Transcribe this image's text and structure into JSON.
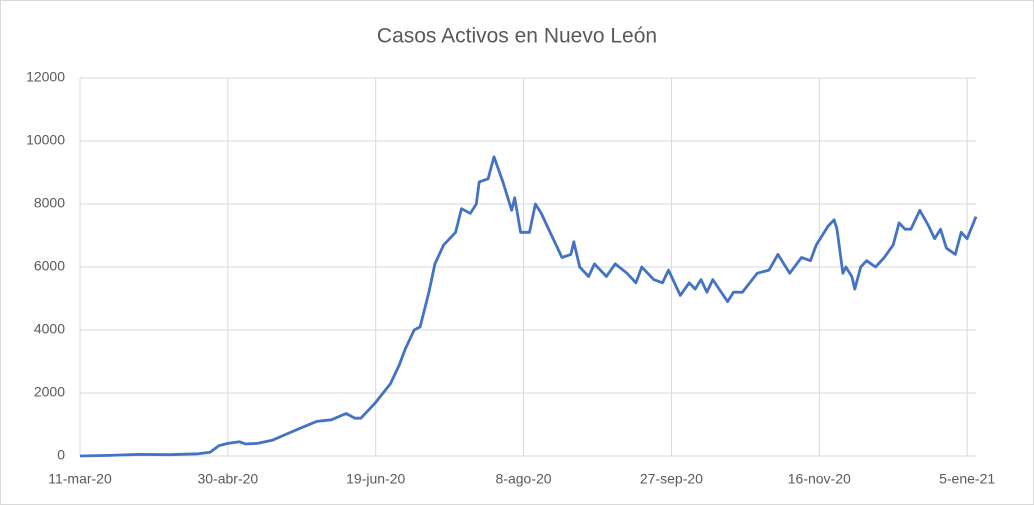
{
  "chart_data": {
    "type": "line",
    "title": "Casos Activos en Nuevo León",
    "x": [
      "2020-03-11",
      "2020-03-21",
      "2020-03-31",
      "2020-04-10",
      "2020-04-20",
      "2020-04-24",
      "2020-04-27",
      "2020-04-30",
      "2020-05-04",
      "2020-05-06",
      "2020-05-10",
      "2020-05-15",
      "2020-05-20",
      "2020-05-25",
      "2020-05-30",
      "2020-06-04",
      "2020-06-09",
      "2020-06-12",
      "2020-06-14",
      "2020-06-19",
      "2020-06-24",
      "2020-06-27",
      "2020-06-29",
      "2020-07-02",
      "2020-07-04",
      "2020-07-07",
      "2020-07-09",
      "2020-07-12",
      "2020-07-16",
      "2020-07-18",
      "2020-07-21",
      "2020-07-23",
      "2020-07-24",
      "2020-07-27",
      "2020-07-29",
      "2020-08-01",
      "2020-08-04",
      "2020-08-05",
      "2020-08-07",
      "2020-08-10",
      "2020-08-12",
      "2020-08-14",
      "2020-08-16",
      "2020-08-21",
      "2020-08-24",
      "2020-08-25",
      "2020-08-27",
      "2020-08-30",
      "2020-09-01",
      "2020-09-05",
      "2020-09-08",
      "2020-09-12",
      "2020-09-15",
      "2020-09-17",
      "2020-09-21",
      "2020-09-24",
      "2020-09-26",
      "2020-09-30",
      "2020-10-03",
      "2020-10-05",
      "2020-10-07",
      "2020-10-09",
      "2020-10-11",
      "2020-10-16",
      "2020-10-18",
      "2020-10-21",
      "2020-10-26",
      "2020-10-30",
      "2020-11-02",
      "2020-11-06",
      "2020-11-10",
      "2020-11-13",
      "2020-11-15",
      "2020-11-19",
      "2020-11-21",
      "2020-11-22",
      "2020-11-24",
      "2020-11-25",
      "2020-11-27",
      "2020-11-28",
      "2020-11-30",
      "2020-12-02",
      "2020-12-05",
      "2020-12-08",
      "2020-12-11",
      "2020-12-13",
      "2020-12-15",
      "2020-12-17",
      "2020-12-20",
      "2020-12-23",
      "2020-12-25",
      "2020-12-27",
      "2020-12-29",
      "2021-01-01",
      "2021-01-03",
      "2021-01-05",
      "2021-01-08"
    ],
    "series": [
      {
        "name": "Casos Activos",
        "color": "#4472c4",
        "values": [
          0,
          20,
          50,
          40,
          70,
          120,
          330,
          400,
          450,
          380,
          400,
          500,
          700,
          900,
          1100,
          1150,
          1350,
          1200,
          1200,
          1700,
          2300,
          2900,
          3400,
          4000,
          4100,
          5200,
          6100,
          6700,
          7100,
          7850,
          7700,
          8000,
          8700,
          8800,
          9500,
          8700,
          7800,
          8200,
          7100,
          7100,
          8000,
          7700,
          7300,
          6300,
          6400,
          6800,
          6000,
          5700,
          6100,
          5700,
          6100,
          5800,
          5500,
          6000,
          5600,
          5500,
          5900,
          5100,
          5500,
          5300,
          5600,
          5200,
          5600,
          4900,
          5200,
          5200,
          5800,
          5900,
          6400,
          5800,
          6300,
          6200,
          6700,
          7300,
          7500,
          7200,
          5800,
          6000,
          5700,
          5300,
          6000,
          6200,
          6000,
          6300,
          6700,
          7400,
          7200,
          7200,
          7800,
          7300,
          6900,
          7200,
          6600,
          6400,
          7100,
          6900,
          7600
        ]
      }
    ],
    "xlim": [
      "2020-03-11",
      "2021-01-08"
    ],
    "xticks": [
      {
        "value": "2020-03-11",
        "label": "11-mar-20"
      },
      {
        "value": "2020-04-30",
        "label": "30-abr-20"
      },
      {
        "value": "2020-06-19",
        "label": "19-jun-20"
      },
      {
        "value": "2020-08-08",
        "label": "8-ago-20"
      },
      {
        "value": "2020-09-27",
        "label": "27-sep-20"
      },
      {
        "value": "2020-11-16",
        "label": "16-nov-20"
      },
      {
        "value": "2021-01-05",
        "label": "5-ene-21"
      }
    ],
    "ylim": [
      0,
      12000
    ],
    "yticks": [
      0,
      2000,
      4000,
      6000,
      8000,
      10000,
      12000
    ],
    "grid": true
  }
}
